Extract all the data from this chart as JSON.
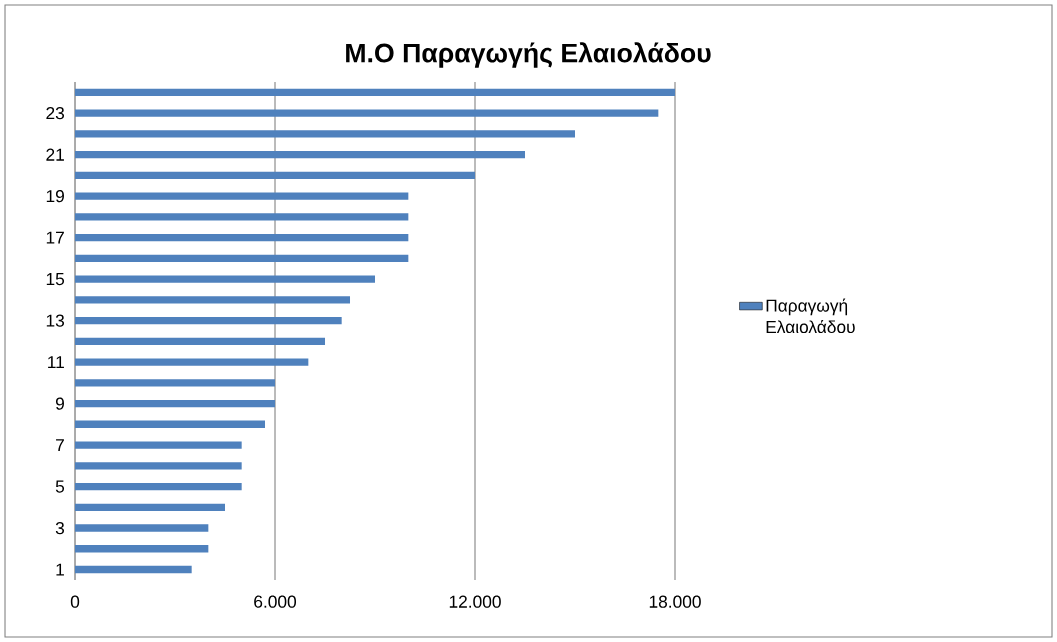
{
  "chart_data": {
    "type": "bar",
    "orientation": "horizontal",
    "title": "Μ.Ο Παραγωγής Ελαιολάδου",
    "categories": [
      null,
      "23",
      null,
      "21",
      null,
      "19",
      null,
      "17",
      null,
      "15",
      null,
      "13",
      null,
      "11",
      null,
      "9",
      null,
      "7",
      null,
      "5",
      null,
      "3",
      null,
      "1"
    ],
    "series": [
      {
        "name": "Παραγωγή Ελαιολάδου",
        "color": "#4f81bd",
        "values": [
          18000,
          17500,
          15000,
          13500,
          12000,
          10000,
          10000,
          10000,
          10000,
          9000,
          8250,
          8000,
          7500,
          7000,
          6000,
          6000,
          5700,
          5000,
          5000,
          5000,
          4500,
          4000,
          4000,
          3500
        ]
      }
    ],
    "xlim": [
      0,
      18000
    ],
    "xticks": [
      0,
      {
        "value": 6000,
        "label": "6.000"
      },
      {
        "value": 12000,
        "label": "12.000"
      },
      {
        "value": 18000,
        "label": "18.000"
      }
    ],
    "grid": "x",
    "legend": "right"
  }
}
